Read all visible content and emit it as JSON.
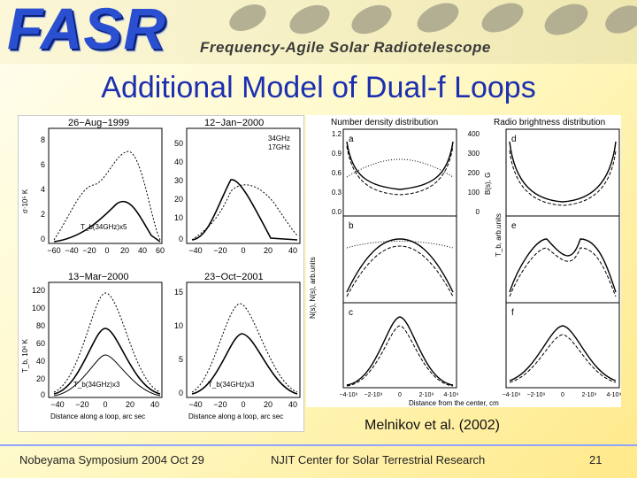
{
  "banner": {
    "logo": "FASR",
    "subtitle": "Frequency-Agile Solar Radiotelescope"
  },
  "slide": {
    "title": "Additional Model of Dual-f Loops",
    "caption": "Melnikov et al. (2002)"
  },
  "left_figure": {
    "panels": [
      {
        "title": "26−Aug−1999",
        "ylabel": "σ⋅10⁵ K",
        "yticks": [
          "0",
          "2",
          "4",
          "6",
          "8"
        ],
        "xticks": [
          "−60",
          "−40",
          "−20",
          "0",
          "20",
          "40",
          "60"
        ],
        "annotation": "T_b(34GHz)x5"
      },
      {
        "title": "12−Jan−2000",
        "yticks": [
          "0",
          "10",
          "20",
          "30",
          "40",
          "50"
        ],
        "xticks": [
          "−40",
          "−20",
          "0",
          "20",
          "40"
        ],
        "legend": [
          "34GHz",
          "17GHz"
        ]
      },
      {
        "title": "13−Mar−2000",
        "ylabel": "T_b, 10⁶ K",
        "yticks": [
          "0",
          "20",
          "40",
          "60",
          "80",
          "100",
          "120"
        ],
        "xticks": [
          "−40",
          "−20",
          "0",
          "20",
          "40"
        ],
        "annotation": "T_b(34GHz)x3",
        "xlabel": "Distance along a loop, arc sec"
      },
      {
        "title": "23−Oct−2001",
        "yticks": [
          "0",
          "5",
          "10",
          "15"
        ],
        "xticks": [
          "−40",
          "−20",
          "0",
          "20",
          "40"
        ],
        "annotation": "T_b(34GHz)x3",
        "xlabel": "Distance along a loop, arc sec"
      }
    ]
  },
  "right_figure": {
    "col_titles": [
      "Number density distribution",
      "Radio brightness distribution"
    ],
    "row_labels": [
      "a",
      "b",
      "c"
    ],
    "col2_labels": [
      "d",
      "e",
      "f"
    ],
    "yticks_left": [
      "0.0",
      "0.3",
      "0.6",
      "0.9",
      "1.2"
    ],
    "yticks_right": [
      "0",
      "100",
      "200",
      "300",
      "400"
    ],
    "ylabel_left": "N(s), N(s), arb.units",
    "ylabel_mid": "B(s), G",
    "ylabel_right": "T_b, arb.units",
    "xticks": [
      "−4⋅10⁹",
      "−2⋅10⁹",
      "0",
      "2⋅10⁹",
      "4⋅10⁹"
    ],
    "xlabel": "Distance from the center, cm"
  },
  "footer": {
    "left": "Nobeyama Symposium  2004 Oct 29",
    "center": "NJIT Center for Solar Terrestrial Research",
    "page": "21"
  }
}
